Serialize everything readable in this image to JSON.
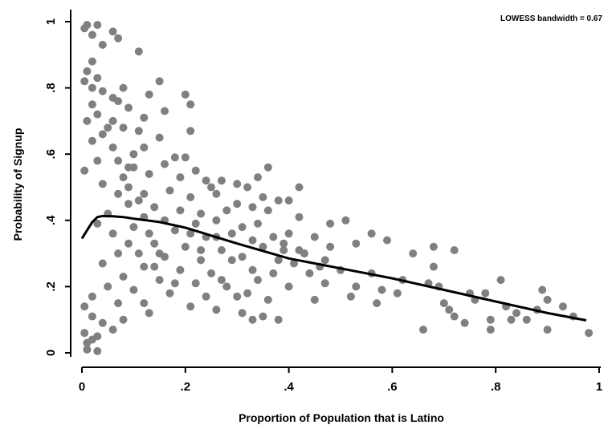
{
  "chart_data": {
    "type": "scatter",
    "xlabel": "Proportion of Population that is Latino",
    "ylabel": "Probability of Signup",
    "annotation": "LOWESS bandwidth = 0.67",
    "xlim": [
      0,
      1
    ],
    "ylim": [
      0,
      1
    ],
    "x_ticks": [
      {
        "value": 0,
        "label": "0"
      },
      {
        "value": 0.2,
        "label": ".2"
      },
      {
        "value": 0.4,
        "label": ".4"
      },
      {
        "value": 0.6,
        "label": ".6"
      },
      {
        "value": 0.8,
        "label": ".8"
      },
      {
        "value": 1,
        "label": "1"
      }
    ],
    "y_ticks": [
      {
        "value": 0,
        "label": "0"
      },
      {
        "value": 0.2,
        "label": ".2"
      },
      {
        "value": 0.4,
        "label": ".4"
      },
      {
        "value": 0.6,
        "label": ".6"
      },
      {
        "value": 0.8,
        "label": ".8"
      },
      {
        "value": 1,
        "label": "1"
      }
    ],
    "grid": false,
    "colors": {
      "points": "#808080",
      "line": "#000000",
      "axis": "#000000"
    },
    "series": [
      {
        "type": "scatter",
        "points": [
          [
            0.005,
            0.98
          ],
          [
            0.01,
            0.99
          ],
          [
            0.02,
            0.96
          ],
          [
            0.03,
            0.99
          ],
          [
            0.06,
            0.97
          ],
          [
            0.07,
            0.95
          ],
          [
            0.04,
            0.93
          ],
          [
            0.11,
            0.91
          ],
          [
            0.02,
            0.88
          ],
          [
            0.01,
            0.85
          ],
          [
            0.03,
            0.83
          ],
          [
            0.005,
            0.82
          ],
          [
            0.02,
            0.8
          ],
          [
            0.08,
            0.8
          ],
          [
            0.15,
            0.82
          ],
          [
            0.13,
            0.78
          ],
          [
            0.07,
            0.76
          ],
          [
            0.2,
            0.78
          ],
          [
            0.21,
            0.75
          ],
          [
            0.09,
            0.74
          ],
          [
            0.16,
            0.73
          ],
          [
            0.12,
            0.71
          ],
          [
            0.06,
            0.7
          ],
          [
            0.08,
            0.68
          ],
          [
            0.11,
            0.67
          ],
          [
            0.21,
            0.67
          ],
          [
            0.15,
            0.65
          ],
          [
            0.04,
            0.66
          ],
          [
            0.12,
            0.62
          ],
          [
            0.1,
            0.6
          ],
          [
            0.18,
            0.59
          ],
          [
            0.07,
            0.58
          ],
          [
            0.2,
            0.59
          ],
          [
            0.16,
            0.57
          ],
          [
            0.09,
            0.56
          ],
          [
            0.22,
            0.55
          ],
          [
            0.13,
            0.54
          ],
          [
            0.19,
            0.53
          ],
          [
            0.24,
            0.52
          ],
          [
            0.36,
            0.56
          ],
          [
            0.34,
            0.53
          ],
          [
            0.27,
            0.52
          ],
          [
            0.3,
            0.51
          ],
          [
            0.25,
            0.5
          ],
          [
            0.32,
            0.5
          ],
          [
            0.17,
            0.49
          ],
          [
            0.21,
            0.47
          ],
          [
            0.26,
            0.48
          ],
          [
            0.35,
            0.47
          ],
          [
            0.42,
            0.5
          ],
          [
            0.11,
            0.46
          ],
          [
            0.38,
            0.46
          ],
          [
            0.4,
            0.46
          ],
          [
            0.3,
            0.45
          ],
          [
            0.14,
            0.44
          ],
          [
            0.19,
            0.43
          ],
          [
            0.23,
            0.42
          ],
          [
            0.28,
            0.43
          ],
          [
            0.33,
            0.44
          ],
          [
            0.36,
            0.43
          ],
          [
            0.12,
            0.41
          ],
          [
            0.16,
            0.4
          ],
          [
            0.22,
            0.39
          ],
          [
            0.26,
            0.4
          ],
          [
            0.31,
            0.38
          ],
          [
            0.34,
            0.39
          ],
          [
            0.42,
            0.41
          ],
          [
            0.48,
            0.39
          ],
          [
            0.51,
            0.4
          ],
          [
            0.18,
            0.37
          ],
          [
            0.21,
            0.36
          ],
          [
            0.24,
            0.35
          ],
          [
            0.29,
            0.36
          ],
          [
            0.33,
            0.34
          ],
          [
            0.37,
            0.35
          ],
          [
            0.45,
            0.35
          ],
          [
            0.56,
            0.36
          ],
          [
            0.59,
            0.34
          ],
          [
            0.14,
            0.33
          ],
          [
            0.2,
            0.32
          ],
          [
            0.27,
            0.31
          ],
          [
            0.35,
            0.32
          ],
          [
            0.39,
            0.31
          ],
          [
            0.43,
            0.3
          ],
          [
            0.48,
            0.32
          ],
          [
            0.53,
            0.33
          ],
          [
            0.11,
            0.3
          ],
          [
            0.16,
            0.29
          ],
          [
            0.23,
            0.28
          ],
          [
            0.31,
            0.29
          ],
          [
            0.38,
            0.28
          ],
          [
            0.41,
            0.27
          ],
          [
            0.46,
            0.26
          ],
          [
            0.64,
            0.3
          ],
          [
            0.68,
            0.32
          ],
          [
            0.72,
            0.31
          ],
          [
            0.12,
            0.26
          ],
          [
            0.19,
            0.25
          ],
          [
            0.25,
            0.24
          ],
          [
            0.33,
            0.25
          ],
          [
            0.37,
            0.24
          ],
          [
            0.44,
            0.24
          ],
          [
            0.5,
            0.25
          ],
          [
            0.56,
            0.24
          ],
          [
            0.62,
            0.22
          ],
          [
            0.68,
            0.26
          ],
          [
            0.15,
            0.22
          ],
          [
            0.22,
            0.21
          ],
          [
            0.28,
            0.2
          ],
          [
            0.34,
            0.22
          ],
          [
            0.4,
            0.2
          ],
          [
            0.47,
            0.21
          ],
          [
            0.53,
            0.2
          ],
          [
            0.58,
            0.19
          ],
          [
            0.67,
            0.21
          ],
          [
            0.69,
            0.2
          ],
          [
            0.75,
            0.18
          ],
          [
            0.78,
            0.18
          ],
          [
            0.81,
            0.22
          ],
          [
            0.89,
            0.19
          ],
          [
            0.1,
            0.19
          ],
          [
            0.17,
            0.18
          ],
          [
            0.24,
            0.17
          ],
          [
            0.3,
            0.17
          ],
          [
            0.36,
            0.16
          ],
          [
            0.45,
            0.16
          ],
          [
            0.52,
            0.17
          ],
          [
            0.57,
            0.15
          ],
          [
            0.61,
            0.18
          ],
          [
            0.7,
            0.15
          ],
          [
            0.76,
            0.16
          ],
          [
            0.82,
            0.14
          ],
          [
            0.84,
            0.12
          ],
          [
            0.88,
            0.13
          ],
          [
            0.9,
            0.16
          ],
          [
            0.93,
            0.14
          ],
          [
            0.12,
            0.15
          ],
          [
            0.21,
            0.14
          ],
          [
            0.26,
            0.13
          ],
          [
            0.31,
            0.12
          ],
          [
            0.35,
            0.11
          ],
          [
            0.38,
            0.1
          ],
          [
            0.71,
            0.13
          ],
          [
            0.72,
            0.11
          ],
          [
            0.74,
            0.09
          ],
          [
            0.79,
            0.1
          ],
          [
            0.83,
            0.1
          ],
          [
            0.86,
            0.1
          ],
          [
            0.9,
            0.07
          ],
          [
            0.95,
            0.11
          ],
          [
            0.98,
            0.06
          ],
          [
            0.66,
            0.07
          ],
          [
            0.79,
            0.07
          ],
          [
            0.33,
            0.1
          ],
          [
            0.08,
            0.1
          ],
          [
            0.06,
            0.07
          ],
          [
            0.03,
            0.05
          ],
          [
            0.02,
            0.04
          ],
          [
            0.01,
            0.03
          ],
          [
            0.005,
            0.06
          ],
          [
            0.01,
            0.01
          ],
          [
            0.03,
            0.005
          ],
          [
            0.02,
            0.11
          ],
          [
            0.04,
            0.09
          ],
          [
            0.005,
            0.14
          ],
          [
            0.02,
            0.17
          ],
          [
            0.05,
            0.2
          ],
          [
            0.08,
            0.23
          ],
          [
            0.04,
            0.27
          ],
          [
            0.07,
            0.3
          ],
          [
            0.09,
            0.33
          ],
          [
            0.06,
            0.36
          ],
          [
            0.03,
            0.39
          ],
          [
            0.05,
            0.42
          ],
          [
            0.09,
            0.45
          ],
          [
            0.07,
            0.48
          ],
          [
            0.04,
            0.51
          ],
          [
            0.08,
            0.53
          ],
          [
            0.1,
            0.56
          ],
          [
            0.005,
            0.55
          ],
          [
            0.03,
            0.58
          ],
          [
            0.06,
            0.62
          ],
          [
            0.02,
            0.64
          ],
          [
            0.05,
            0.68
          ],
          [
            0.01,
            0.7
          ],
          [
            0.03,
            0.72
          ],
          [
            0.02,
            0.75
          ],
          [
            0.06,
            0.77
          ],
          [
            0.04,
            0.79
          ],
          [
            0.13,
            0.36
          ],
          [
            0.14,
            0.26
          ],
          [
            0.18,
            0.21
          ],
          [
            0.1,
            0.38
          ],
          [
            0.12,
            0.48
          ],
          [
            0.09,
            0.5
          ],
          [
            0.15,
            0.3
          ],
          [
            0.26,
            0.35
          ],
          [
            0.23,
            0.31
          ],
          [
            0.39,
            0.33
          ],
          [
            0.4,
            0.36
          ],
          [
            0.29,
            0.28
          ],
          [
            0.42,
            0.31
          ],
          [
            0.47,
            0.28
          ],
          [
            0.32,
            0.18
          ],
          [
            0.27,
            0.22
          ],
          [
            0.13,
            0.12
          ],
          [
            0.07,
            0.15
          ]
        ]
      },
      {
        "type": "line",
        "name": "LOWESS",
        "points": [
          [
            0,
            0.345
          ],
          [
            0.01,
            0.37
          ],
          [
            0.02,
            0.395
          ],
          [
            0.03,
            0.41
          ],
          [
            0.04,
            0.413
          ],
          [
            0.06,
            0.412
          ],
          [
            0.08,
            0.41
          ],
          [
            0.1,
            0.405
          ],
          [
            0.15,
            0.395
          ],
          [
            0.2,
            0.378
          ],
          [
            0.3,
            0.33
          ],
          [
            0.4,
            0.285
          ],
          [
            0.5,
            0.255
          ],
          [
            0.6,
            0.225
          ],
          [
            0.7,
            0.19
          ],
          [
            0.8,
            0.155
          ],
          [
            0.9,
            0.12
          ],
          [
            0.975,
            0.098
          ]
        ]
      }
    ]
  }
}
